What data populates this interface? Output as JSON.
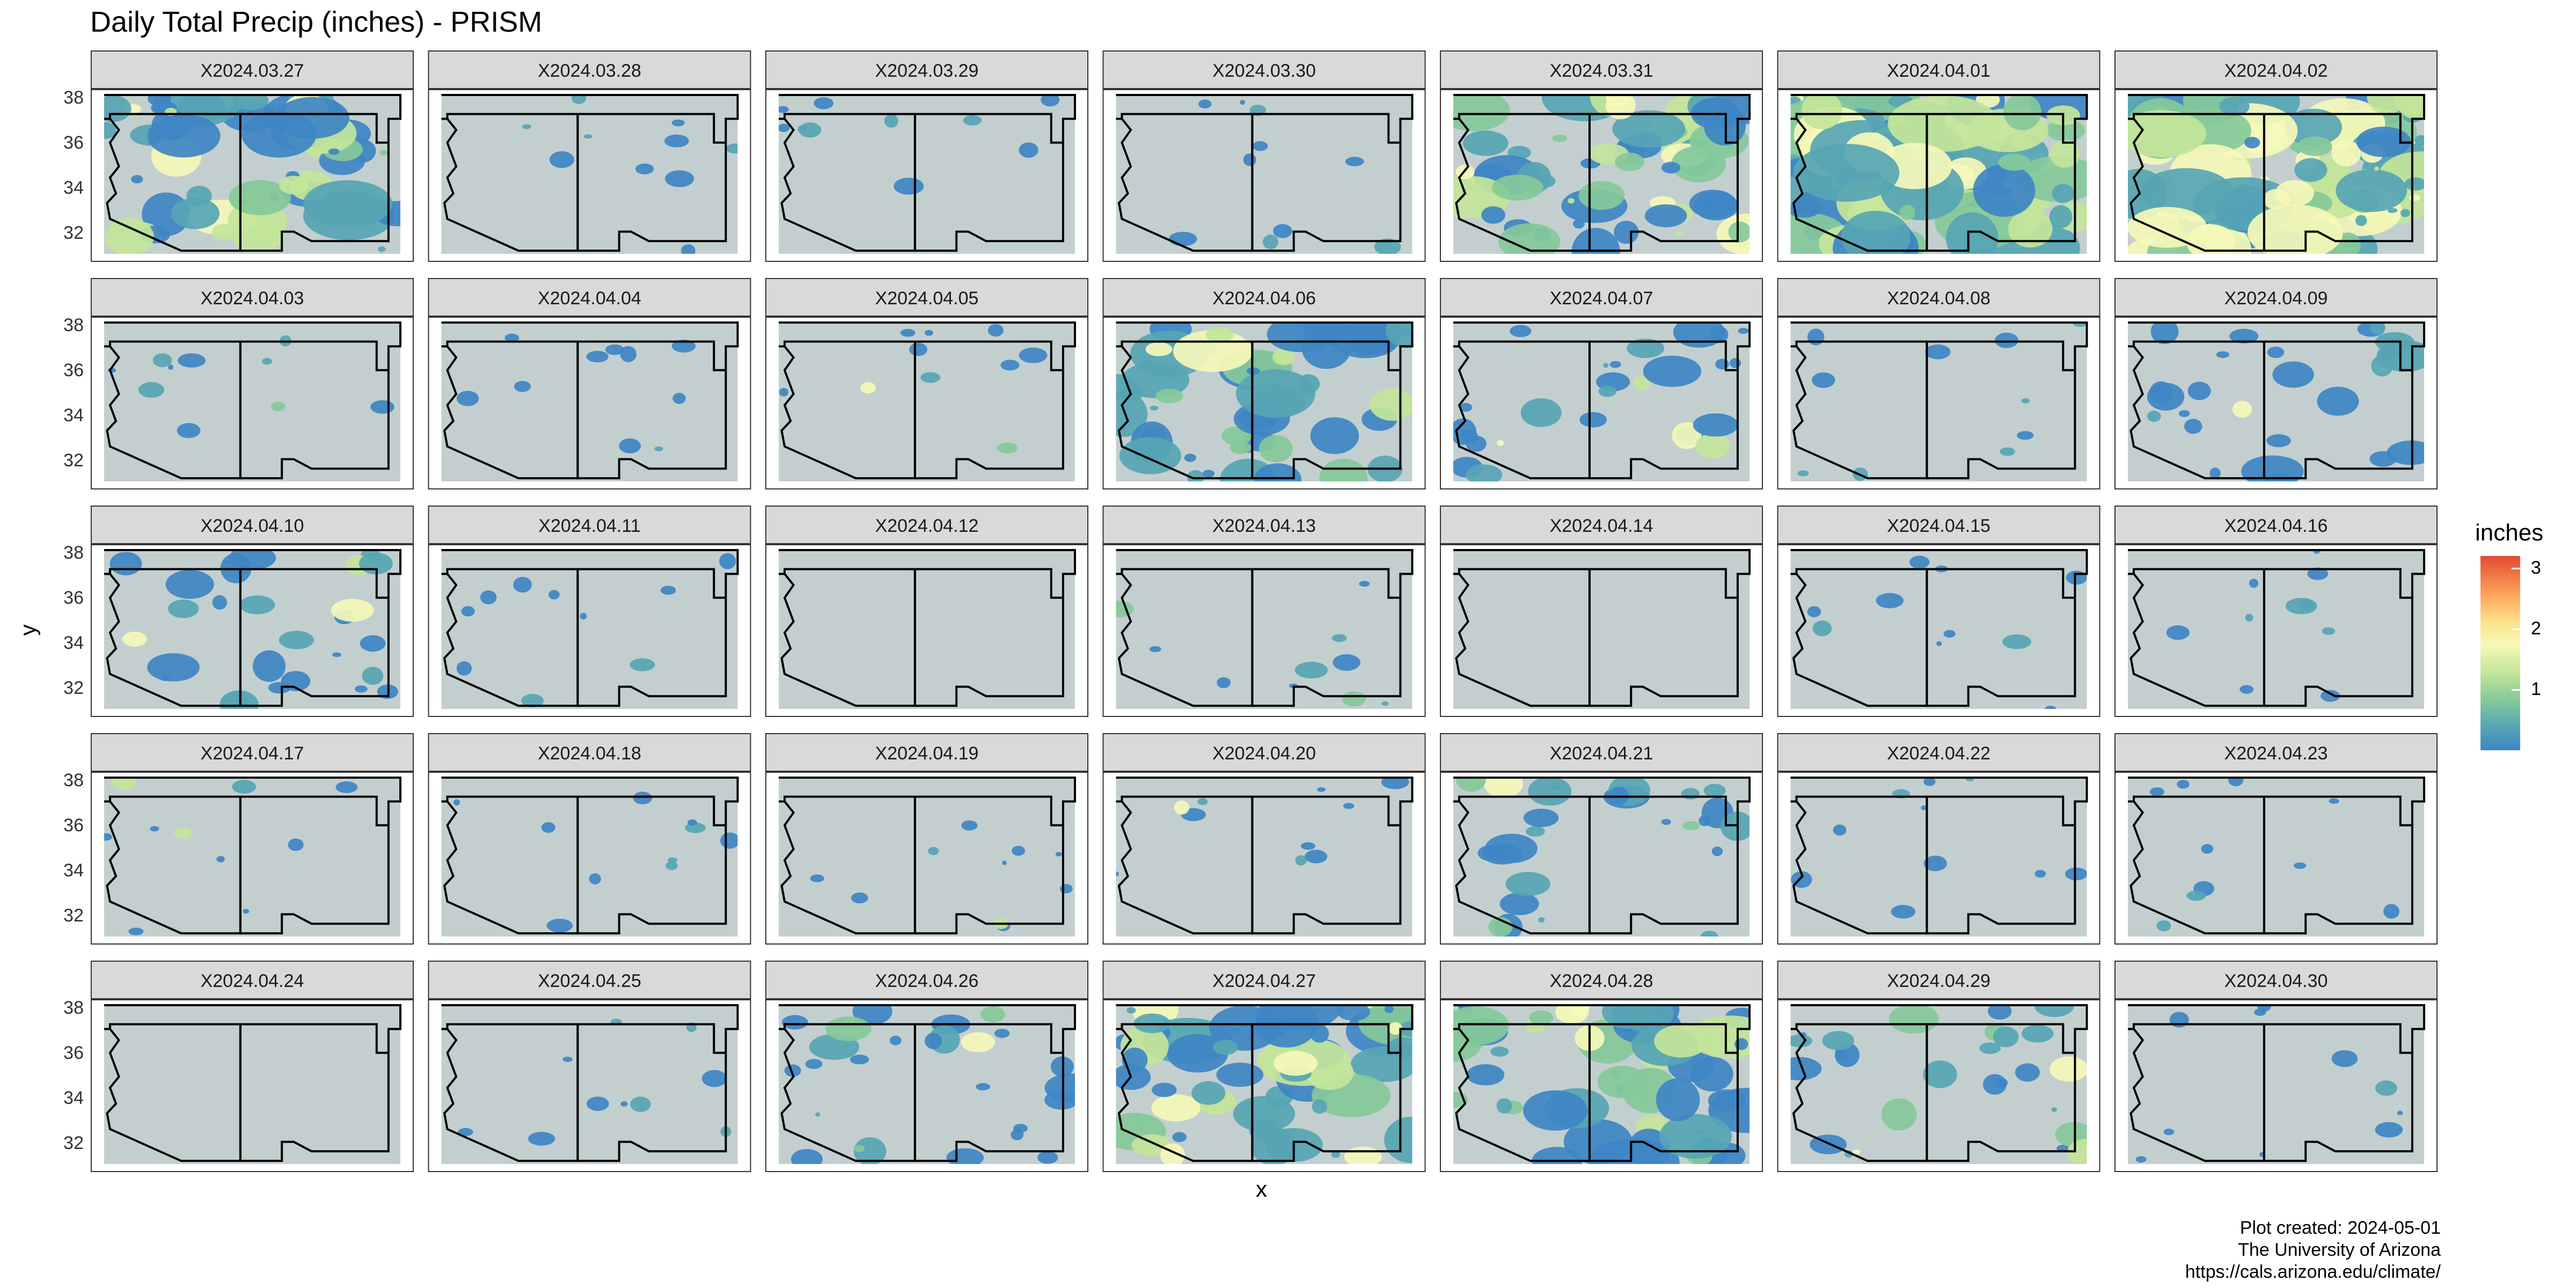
{
  "title": "Daily Total Precip (inches) - PRISM",
  "xlabel": "x",
  "ylabel": "y",
  "legend": {
    "title": "inches",
    "ticks": [
      {
        "label": "3",
        "value": 3
      },
      {
        "label": "2",
        "value": 2
      },
      {
        "label": "1",
        "value": 1
      }
    ],
    "range": [
      0,
      3.2
    ],
    "colors": [
      "#3e86c4",
      "#57a5b4",
      "#86c99a",
      "#c3e59a",
      "#f5f9b8",
      "#fde28b",
      "#fba65b",
      "#e34a33"
    ]
  },
  "y_ticks": [
    "38",
    "36",
    "34",
    "32"
  ],
  "map_colors": {
    "background": "#c3cfcf",
    "panel_border": "#333333",
    "strip": "#d9d9d9",
    "state_line": "#000000",
    "grid": "#ffffff"
  },
  "panels": [
    {
      "label": "X2024.03.27",
      "precip": "high"
    },
    {
      "label": "X2024.03.28",
      "precip": "low"
    },
    {
      "label": "X2024.03.29",
      "precip": "low"
    },
    {
      "label": "X2024.03.30",
      "precip": "low"
    },
    {
      "label": "X2024.03.31",
      "precip": "high"
    },
    {
      "label": "X2024.04.01",
      "precip": "very-high"
    },
    {
      "label": "X2024.04.02",
      "precip": "very-high"
    },
    {
      "label": "X2024.04.03",
      "precip": "low"
    },
    {
      "label": "X2024.04.04",
      "precip": "low"
    },
    {
      "label": "X2024.04.05",
      "precip": "low"
    },
    {
      "label": "X2024.04.06",
      "precip": "high"
    },
    {
      "label": "X2024.04.07",
      "precip": "medium"
    },
    {
      "label": "X2024.04.08",
      "precip": "low"
    },
    {
      "label": "X2024.04.09",
      "precip": "medium"
    },
    {
      "label": "X2024.04.10",
      "precip": "medium"
    },
    {
      "label": "X2024.04.11",
      "precip": "low"
    },
    {
      "label": "X2024.04.12",
      "precip": "none"
    },
    {
      "label": "X2024.04.13",
      "precip": "low"
    },
    {
      "label": "X2024.04.14",
      "precip": "none"
    },
    {
      "label": "X2024.04.15",
      "precip": "low"
    },
    {
      "label": "X2024.04.16",
      "precip": "low"
    },
    {
      "label": "X2024.04.17",
      "precip": "low"
    },
    {
      "label": "X2024.04.18",
      "precip": "low"
    },
    {
      "label": "X2024.04.19",
      "precip": "low"
    },
    {
      "label": "X2024.04.20",
      "precip": "low"
    },
    {
      "label": "X2024.04.21",
      "precip": "medium"
    },
    {
      "label": "X2024.04.22",
      "precip": "low"
    },
    {
      "label": "X2024.04.23",
      "precip": "low"
    },
    {
      "label": "X2024.04.24",
      "precip": "none"
    },
    {
      "label": "X2024.04.25",
      "precip": "low"
    },
    {
      "label": "X2024.04.26",
      "precip": "medium"
    },
    {
      "label": "X2024.04.27",
      "precip": "high"
    },
    {
      "label": "X2024.04.28",
      "precip": "high"
    },
    {
      "label": "X2024.04.29",
      "precip": "medium"
    },
    {
      "label": "X2024.04.30",
      "precip": "low"
    }
  ],
  "caption": {
    "line1": "Plot created: 2024-05-01",
    "line2": "The University of Arizona",
    "line3": "https://cals.arizona.edu/climate/"
  }
}
